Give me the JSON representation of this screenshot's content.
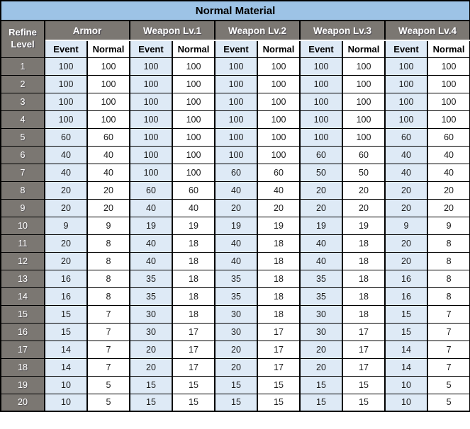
{
  "title": "Normal Material",
  "refine_header": {
    "line1": "Refine",
    "line2": "Level"
  },
  "groups": [
    "Armor",
    "Weapon Lv.1",
    "Weapon Lv.2",
    "Weapon Lv.3",
    "Weapon Lv.4"
  ],
  "sub_headers": [
    "Event",
    "Normal"
  ],
  "colors": {
    "banner_bg": "#9DC3E6",
    "header_bg": "#7B7772",
    "event_bg": "#DEEAF6",
    "normal_bg": "#FFFFFF",
    "border": "#000000",
    "header_text": "#FFFFFF",
    "data_text": "#1A1A1A"
  },
  "chart_data": {
    "type": "table",
    "title": "Normal Material",
    "columns": [
      "Refine Level",
      "Armor Event",
      "Armor Normal",
      "Weapon Lv.1 Event",
      "Weapon Lv.1 Normal",
      "Weapon Lv.2 Event",
      "Weapon Lv.2 Normal",
      "Weapon Lv.3 Event",
      "Weapon Lv.3 Normal",
      "Weapon Lv.4 Event",
      "Weapon Lv.4 Normal"
    ]
  },
  "rows": [
    {
      "level": "1",
      "values": [
        100,
        100,
        100,
        100,
        100,
        100,
        100,
        100,
        100,
        100
      ]
    },
    {
      "level": "2",
      "values": [
        100,
        100,
        100,
        100,
        100,
        100,
        100,
        100,
        100,
        100
      ]
    },
    {
      "level": "3",
      "values": [
        100,
        100,
        100,
        100,
        100,
        100,
        100,
        100,
        100,
        100
      ]
    },
    {
      "level": "4",
      "values": [
        100,
        100,
        100,
        100,
        100,
        100,
        100,
        100,
        100,
        100
      ]
    },
    {
      "level": "5",
      "values": [
        60,
        60,
        100,
        100,
        100,
        100,
        100,
        100,
        60,
        60
      ]
    },
    {
      "level": "6",
      "values": [
        40,
        40,
        100,
        100,
        100,
        100,
        60,
        60,
        40,
        40
      ]
    },
    {
      "level": "7",
      "values": [
        40,
        40,
        100,
        100,
        60,
        60,
        50,
        50,
        40,
        40
      ]
    },
    {
      "level": "8",
      "values": [
        20,
        20,
        60,
        60,
        40,
        40,
        20,
        20,
        20,
        20
      ]
    },
    {
      "level": "9",
      "values": [
        20,
        20,
        40,
        40,
        20,
        20,
        20,
        20,
        20,
        20
      ]
    },
    {
      "level": "10",
      "values": [
        9,
        9,
        19,
        19,
        19,
        19,
        19,
        19,
        9,
        9
      ]
    },
    {
      "level": "11",
      "values": [
        20,
        8,
        40,
        18,
        40,
        18,
        40,
        18,
        20,
        8
      ]
    },
    {
      "level": "12",
      "values": [
        20,
        8,
        40,
        18,
        40,
        18,
        40,
        18,
        20,
        8
      ]
    },
    {
      "level": "13",
      "values": [
        16,
        8,
        35,
        18,
        35,
        18,
        35,
        18,
        16,
        8
      ]
    },
    {
      "level": "14",
      "values": [
        16,
        8,
        35,
        18,
        35,
        18,
        35,
        18,
        16,
        8
      ]
    },
    {
      "level": "15",
      "values": [
        15,
        7,
        30,
        18,
        30,
        18,
        30,
        18,
        15,
        7
      ]
    },
    {
      "level": "16",
      "values": [
        15,
        7,
        30,
        17,
        30,
        17,
        30,
        17,
        15,
        7
      ]
    },
    {
      "level": "17",
      "values": [
        14,
        7,
        20,
        17,
        20,
        17,
        20,
        17,
        14,
        7
      ]
    },
    {
      "level": "18",
      "values": [
        14,
        7,
        20,
        17,
        20,
        17,
        20,
        17,
        14,
        7
      ]
    },
    {
      "level": "19",
      "values": [
        10,
        5,
        15,
        15,
        15,
        15,
        15,
        15,
        10,
        5
      ]
    },
    {
      "level": "20",
      "values": [
        10,
        5,
        15,
        15,
        15,
        15,
        15,
        15,
        10,
        5
      ]
    }
  ]
}
